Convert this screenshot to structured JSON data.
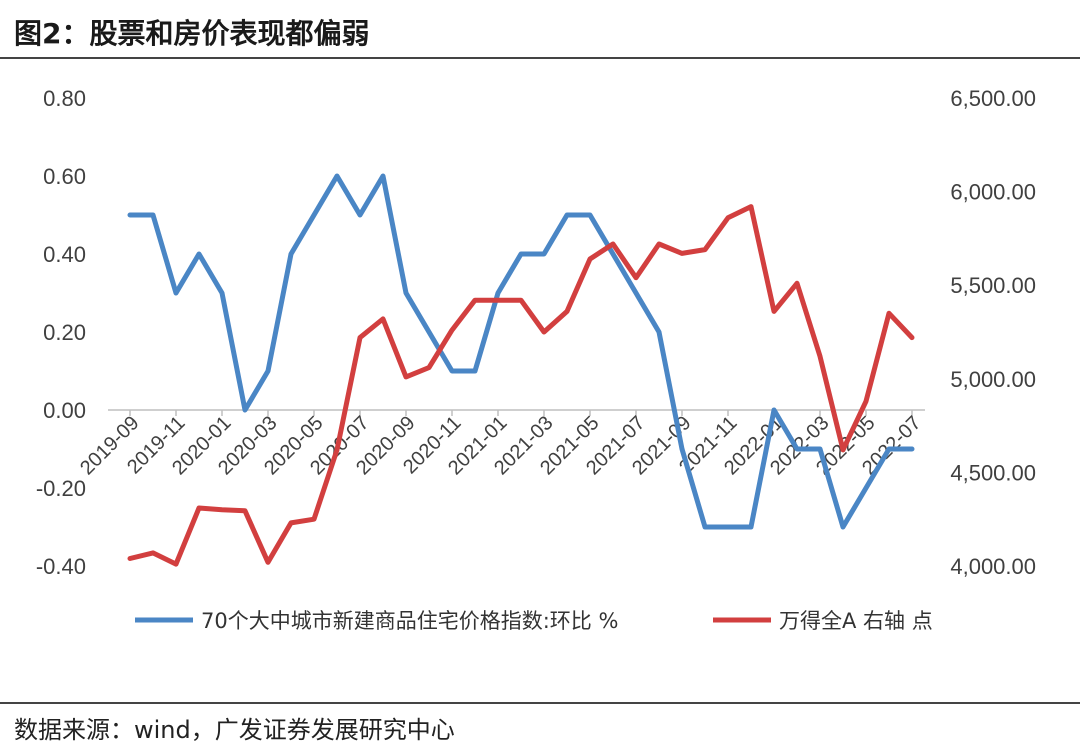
{
  "title": "图2：股票和房价表现都偏弱",
  "source": "数据来源：wind，广发证券发展研究中心",
  "chart_data": {
    "type": "line",
    "x": [
      "2019-09",
      "2019-10",
      "2019-11",
      "2019-12",
      "2020-01",
      "2020-02",
      "2020-03",
      "2020-04",
      "2020-05",
      "2020-06",
      "2020-07",
      "2020-08",
      "2020-09",
      "2020-10",
      "2020-11",
      "2020-12",
      "2021-01",
      "2021-02",
      "2021-03",
      "2021-04",
      "2021-05",
      "2021-06",
      "2021-07",
      "2021-08",
      "2021-09",
      "2021-10",
      "2021-11",
      "2021-12",
      "2022-01",
      "2022-02",
      "2022-03",
      "2022-04",
      "2022-05",
      "2022-06",
      "2022-07"
    ],
    "x_tick_labels": [
      "2019-09",
      "2019-11",
      "2020-01",
      "2020-03",
      "2020-05",
      "2020-07",
      "2020-09",
      "2020-11",
      "2021-01",
      "2021-03",
      "2021-05",
      "2021-07",
      "2021-09",
      "2021-11",
      "2022-01",
      "2022-03",
      "2022-05",
      "2022-07"
    ],
    "series": [
      {
        "name": "70个大中城市新建商品住宅价格指数:环比 %",
        "axis": "left",
        "color": "#4a86c5",
        "values": [
          0.5,
          0.5,
          0.3,
          0.4,
          0.3,
          0.0,
          0.1,
          0.4,
          0.5,
          0.6,
          0.5,
          0.6,
          0.3,
          0.2,
          0.1,
          0.1,
          0.3,
          0.4,
          0.4,
          0.5,
          0.5,
          0.4,
          0.3,
          0.2,
          -0.1,
          -0.3,
          -0.3,
          -0.3,
          0.0,
          -0.1,
          -0.1,
          -0.3,
          -0.2,
          -0.1,
          -0.1
        ]
      },
      {
        "name": "万得全A 右轴 点",
        "axis": "right",
        "color": "#d23f3f",
        "values": [
          4040,
          4070,
          4010,
          4310,
          4300,
          4295,
          4020,
          4230,
          4250,
          4620,
          5220,
          5320,
          5010,
          5060,
          5260,
          5420,
          5420,
          5420,
          5250,
          5360,
          5640,
          5720,
          5540,
          5720,
          5670,
          5690,
          5860,
          5920,
          5360,
          5510,
          5120,
          4620,
          4880,
          5350,
          5220
        ]
      }
    ],
    "y_left": {
      "ylim": [
        -0.4,
        0.8
      ],
      "ticks": [
        "0.80",
        "0.60",
        "0.40",
        "0.20",
        "0.00",
        "-0.20",
        "-0.40"
      ]
    },
    "y_right": {
      "ylim": [
        4000,
        6500
      ],
      "ticks": [
        "6,500.00",
        "6,000.00",
        "5,500.00",
        "5,000.00",
        "4,500.00",
        "4,000.00"
      ]
    },
    "grid": false,
    "legend_position": "bottom"
  }
}
